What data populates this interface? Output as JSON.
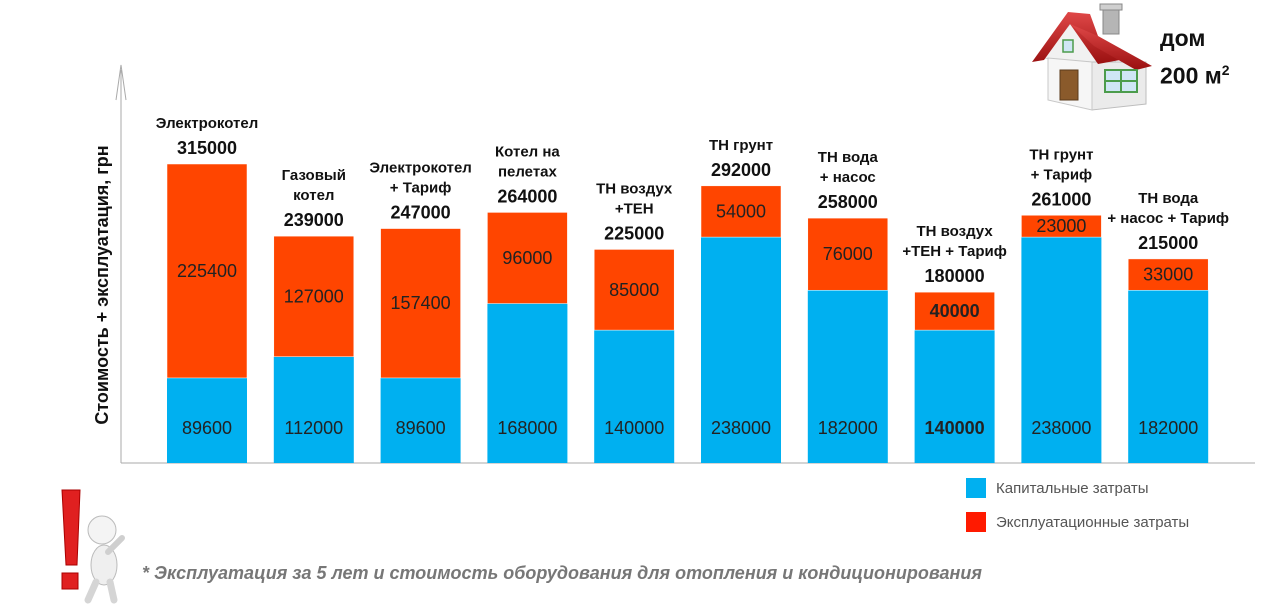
{
  "colors": {
    "capital": "#00B0F0",
    "operating": "#FF4500",
    "highlight": "#33CC33",
    "legend_operating": "#FF1A00"
  },
  "house": {
    "title": "дом",
    "area": "200 м",
    "area_sup": "2"
  },
  "legend": {
    "capital": "Капитальные затраты",
    "operating": "Эксплуатационные затраты"
  },
  "footnote": "* Эксплуатация за 5 лет и стоимость оборудования для отопления и кондиционирования",
  "chart_data": {
    "type": "bar",
    "stacked": true,
    "ylabel": "Стоимость + эксплуатация, грн",
    "ylim": [
      0,
      390000
    ],
    "grid": false,
    "legend_position": "bottom-right",
    "categories": [
      {
        "lines": [
          "Электрокотел"
        ],
        "total": "315000"
      },
      {
        "lines": [
          "Газовый",
          "котел"
        ],
        "total": "239000"
      },
      {
        "lines": [
          "Электрокотел",
          "+ Тариф"
        ],
        "total": "247000"
      },
      {
        "lines": [
          "Котел на",
          "пелетах"
        ],
        "total": "264000"
      },
      {
        "lines": [
          "ТН воздух",
          "+ТЕН"
        ],
        "total": "225000"
      },
      {
        "lines": [
          "ТН  грунт"
        ],
        "total": "292000"
      },
      {
        "lines": [
          "ТН вода",
          "+ насос"
        ],
        "total": "258000"
      },
      {
        "lines": [
          "ТН воздух",
          "+ТЕН + Тариф"
        ],
        "total": "180000",
        "highlight": true
      },
      {
        "lines": [
          "ТН  грунт",
          "+ Тариф"
        ],
        "total": "261000"
      },
      {
        "lines": [
          "ТН вода",
          "+ насос + Тариф"
        ],
        "total": "215000"
      }
    ],
    "series": [
      {
        "name": "Капитальные затраты",
        "values": [
          89600,
          112000,
          89600,
          168000,
          140000,
          238000,
          182000,
          140000,
          238000,
          182000
        ]
      },
      {
        "name": "Эксплуатационные затраты",
        "values": [
          225400,
          127000,
          157400,
          96000,
          85000,
          54000,
          76000,
          40000,
          23000,
          33000
        ]
      }
    ]
  }
}
